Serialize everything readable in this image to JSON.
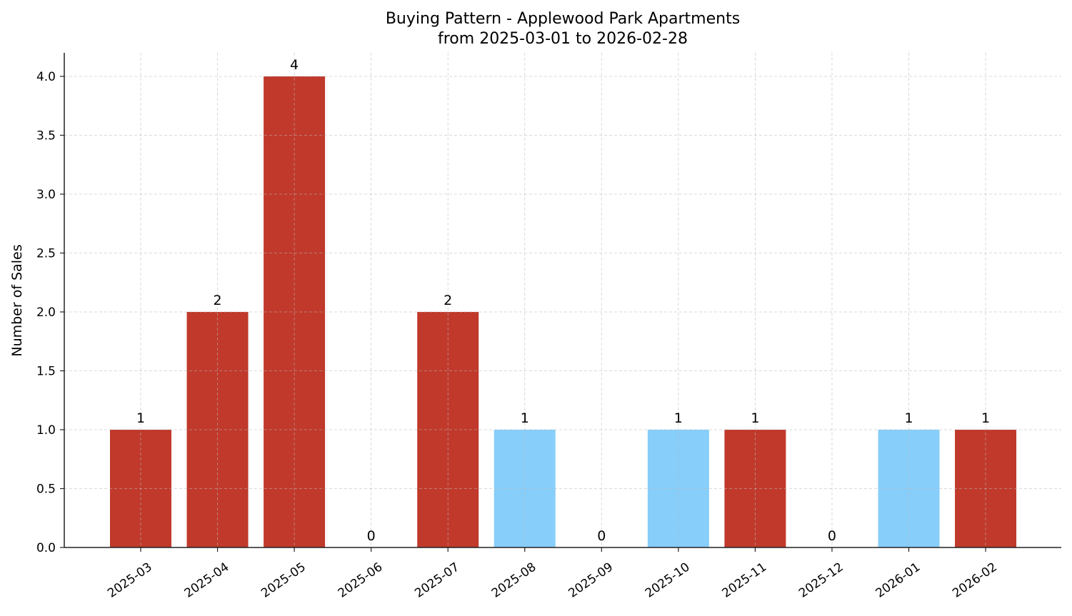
{
  "chart_data": {
    "type": "bar",
    "title": "Buying Pattern - Applewood Park Apartments",
    "subtitle": "from 2025-03-01 to 2026-02-28",
    "xlabel": "",
    "ylabel": "Number of Sales",
    "categories": [
      "2025-03",
      "2025-04",
      "2025-05",
      "2025-06",
      "2025-07",
      "2025-08",
      "2025-09",
      "2025-10",
      "2025-11",
      "2025-12",
      "2026-01",
      "2026-02"
    ],
    "values": [
      1,
      2,
      4,
      0,
      2,
      1,
      0,
      1,
      1,
      0,
      1,
      1
    ],
    "bar_colors": [
      "#c0392b",
      "#c0392b",
      "#c0392b",
      "#c0392b",
      "#c0392b",
      "#87cefa",
      "#87cefa",
      "#87cefa",
      "#c0392b",
      "#c0392b",
      "#87cefa",
      "#c0392b"
    ],
    "data_labels": [
      "1",
      "2",
      "4",
      "0",
      "2",
      "1",
      "0",
      "1",
      "1",
      "0",
      "1",
      "1"
    ],
    "ylim": [
      0,
      4.2
    ],
    "yticks": [
      "0.0",
      "0.5",
      "1.0",
      "1.5",
      "2.0",
      "2.5",
      "3.0",
      "3.5",
      "4.0"
    ],
    "grid": true,
    "legend": "none"
  }
}
